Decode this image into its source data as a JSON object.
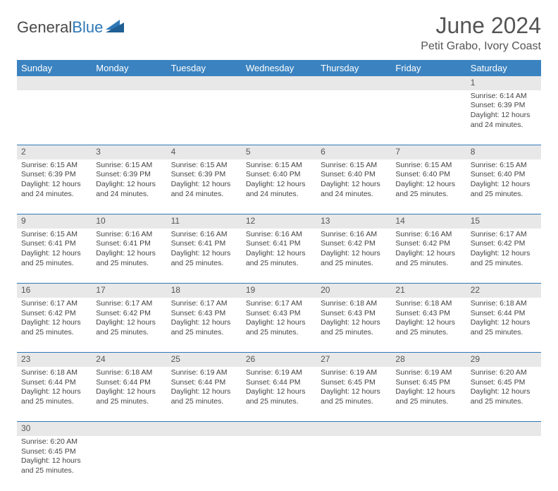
{
  "header": {
    "logo_text_1": "General",
    "logo_text_2": "Blue",
    "month_title": "June 2024",
    "location": "Petit Grabo, Ivory Coast"
  },
  "styling": {
    "header_bg": "#3b83c0",
    "header_fg": "#ffffff",
    "daynum_bg": "#e8e8e8",
    "border_color": "#2f78b7",
    "text_color": "#444444",
    "title_color": "#555555",
    "logo_gray": "#4a4a4a",
    "logo_blue": "#2f78b7",
    "page_bg": "#ffffff",
    "month_fontsize": 32,
    "location_fontsize": 16,
    "cell_fontsize": 10.5
  },
  "weekdays": [
    "Sunday",
    "Monday",
    "Tuesday",
    "Wednesday",
    "Thursday",
    "Friday",
    "Saturday"
  ],
  "weeks": [
    [
      null,
      null,
      null,
      null,
      null,
      null,
      {
        "n": "1",
        "sr": "Sunrise: 6:14 AM",
        "ss": "Sunset: 6:39 PM",
        "dl": "Daylight: 12 hours and 24 minutes."
      }
    ],
    [
      {
        "n": "2",
        "sr": "Sunrise: 6:15 AM",
        "ss": "Sunset: 6:39 PM",
        "dl": "Daylight: 12 hours and 24 minutes."
      },
      {
        "n": "3",
        "sr": "Sunrise: 6:15 AM",
        "ss": "Sunset: 6:39 PM",
        "dl": "Daylight: 12 hours and 24 minutes."
      },
      {
        "n": "4",
        "sr": "Sunrise: 6:15 AM",
        "ss": "Sunset: 6:39 PM",
        "dl": "Daylight: 12 hours and 24 minutes."
      },
      {
        "n": "5",
        "sr": "Sunrise: 6:15 AM",
        "ss": "Sunset: 6:40 PM",
        "dl": "Daylight: 12 hours and 24 minutes."
      },
      {
        "n": "6",
        "sr": "Sunrise: 6:15 AM",
        "ss": "Sunset: 6:40 PM",
        "dl": "Daylight: 12 hours and 24 minutes."
      },
      {
        "n": "7",
        "sr": "Sunrise: 6:15 AM",
        "ss": "Sunset: 6:40 PM",
        "dl": "Daylight: 12 hours and 25 minutes."
      },
      {
        "n": "8",
        "sr": "Sunrise: 6:15 AM",
        "ss": "Sunset: 6:40 PM",
        "dl": "Daylight: 12 hours and 25 minutes."
      }
    ],
    [
      {
        "n": "9",
        "sr": "Sunrise: 6:15 AM",
        "ss": "Sunset: 6:41 PM",
        "dl": "Daylight: 12 hours and 25 minutes."
      },
      {
        "n": "10",
        "sr": "Sunrise: 6:16 AM",
        "ss": "Sunset: 6:41 PM",
        "dl": "Daylight: 12 hours and 25 minutes."
      },
      {
        "n": "11",
        "sr": "Sunrise: 6:16 AM",
        "ss": "Sunset: 6:41 PM",
        "dl": "Daylight: 12 hours and 25 minutes."
      },
      {
        "n": "12",
        "sr": "Sunrise: 6:16 AM",
        "ss": "Sunset: 6:41 PM",
        "dl": "Daylight: 12 hours and 25 minutes."
      },
      {
        "n": "13",
        "sr": "Sunrise: 6:16 AM",
        "ss": "Sunset: 6:42 PM",
        "dl": "Daylight: 12 hours and 25 minutes."
      },
      {
        "n": "14",
        "sr": "Sunrise: 6:16 AM",
        "ss": "Sunset: 6:42 PM",
        "dl": "Daylight: 12 hours and 25 minutes."
      },
      {
        "n": "15",
        "sr": "Sunrise: 6:17 AM",
        "ss": "Sunset: 6:42 PM",
        "dl": "Daylight: 12 hours and 25 minutes."
      }
    ],
    [
      {
        "n": "16",
        "sr": "Sunrise: 6:17 AM",
        "ss": "Sunset: 6:42 PM",
        "dl": "Daylight: 12 hours and 25 minutes."
      },
      {
        "n": "17",
        "sr": "Sunrise: 6:17 AM",
        "ss": "Sunset: 6:42 PM",
        "dl": "Daylight: 12 hours and 25 minutes."
      },
      {
        "n": "18",
        "sr": "Sunrise: 6:17 AM",
        "ss": "Sunset: 6:43 PM",
        "dl": "Daylight: 12 hours and 25 minutes."
      },
      {
        "n": "19",
        "sr": "Sunrise: 6:17 AM",
        "ss": "Sunset: 6:43 PM",
        "dl": "Daylight: 12 hours and 25 minutes."
      },
      {
        "n": "20",
        "sr": "Sunrise: 6:18 AM",
        "ss": "Sunset: 6:43 PM",
        "dl": "Daylight: 12 hours and 25 minutes."
      },
      {
        "n": "21",
        "sr": "Sunrise: 6:18 AM",
        "ss": "Sunset: 6:43 PM",
        "dl": "Daylight: 12 hours and 25 minutes."
      },
      {
        "n": "22",
        "sr": "Sunrise: 6:18 AM",
        "ss": "Sunset: 6:44 PM",
        "dl": "Daylight: 12 hours and 25 minutes."
      }
    ],
    [
      {
        "n": "23",
        "sr": "Sunrise: 6:18 AM",
        "ss": "Sunset: 6:44 PM",
        "dl": "Daylight: 12 hours and 25 minutes."
      },
      {
        "n": "24",
        "sr": "Sunrise: 6:18 AM",
        "ss": "Sunset: 6:44 PM",
        "dl": "Daylight: 12 hours and 25 minutes."
      },
      {
        "n": "25",
        "sr": "Sunrise: 6:19 AM",
        "ss": "Sunset: 6:44 PM",
        "dl": "Daylight: 12 hours and 25 minutes."
      },
      {
        "n": "26",
        "sr": "Sunrise: 6:19 AM",
        "ss": "Sunset: 6:44 PM",
        "dl": "Daylight: 12 hours and 25 minutes."
      },
      {
        "n": "27",
        "sr": "Sunrise: 6:19 AM",
        "ss": "Sunset: 6:45 PM",
        "dl": "Daylight: 12 hours and 25 minutes."
      },
      {
        "n": "28",
        "sr": "Sunrise: 6:19 AM",
        "ss": "Sunset: 6:45 PM",
        "dl": "Daylight: 12 hours and 25 minutes."
      },
      {
        "n": "29",
        "sr": "Sunrise: 6:20 AM",
        "ss": "Sunset: 6:45 PM",
        "dl": "Daylight: 12 hours and 25 minutes."
      }
    ],
    [
      {
        "n": "30",
        "sr": "Sunrise: 6:20 AM",
        "ss": "Sunset: 6:45 PM",
        "dl": "Daylight: 12 hours and 25 minutes."
      },
      null,
      null,
      null,
      null,
      null,
      null
    ]
  ]
}
